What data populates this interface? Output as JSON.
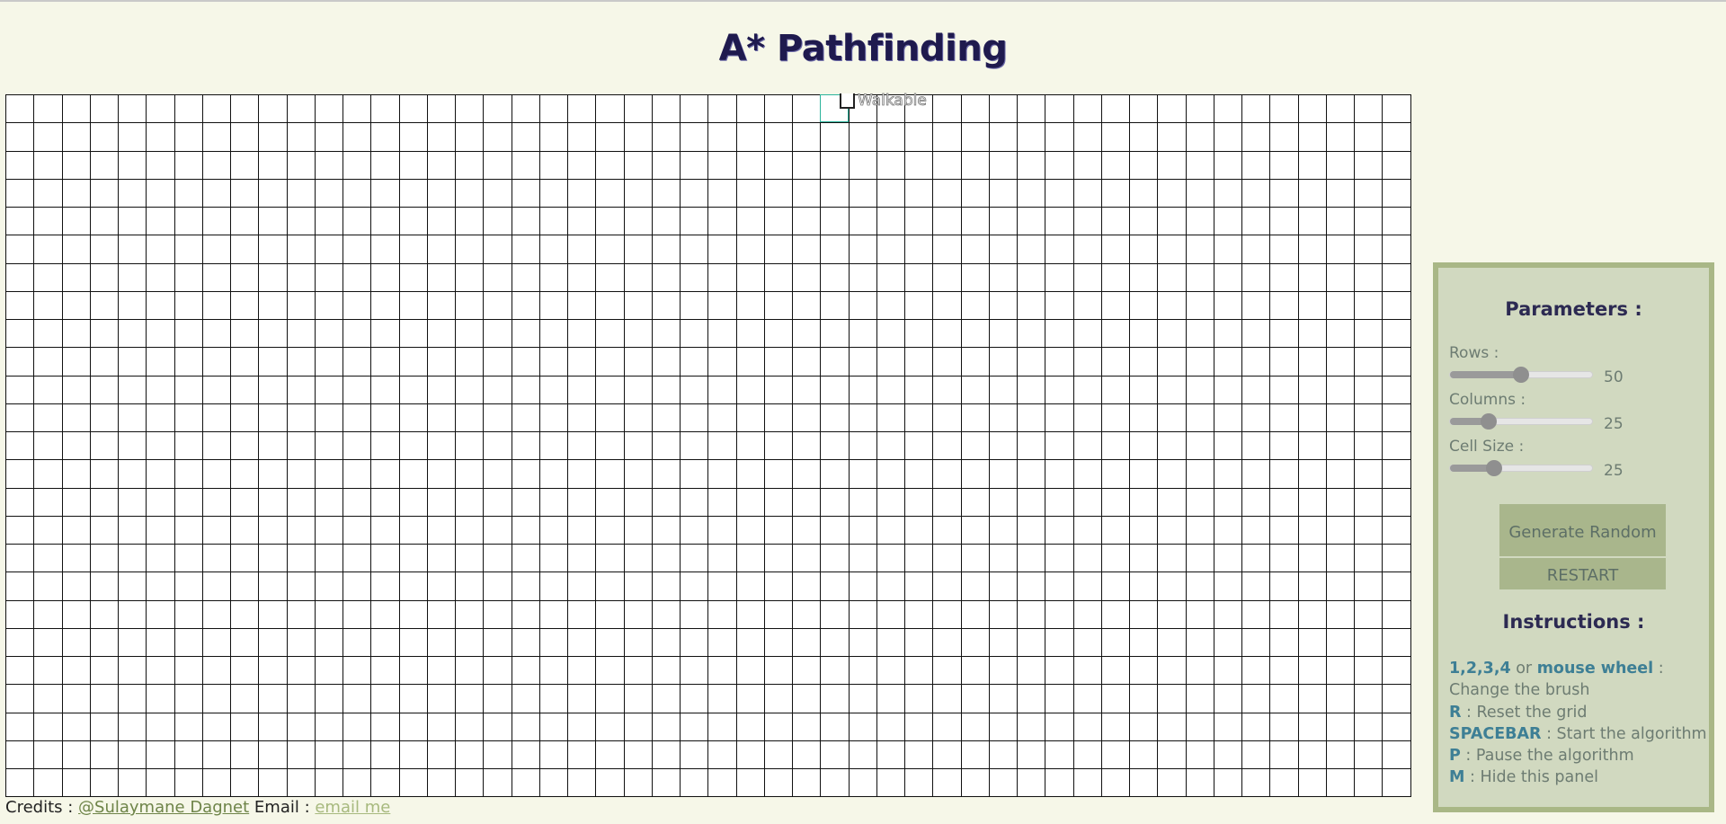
{
  "page": {
    "title": "A* Pathfinding"
  },
  "grid": {
    "columns": 50,
    "rows": 25,
    "hover_cell": {
      "row": 0,
      "col": 29
    }
  },
  "brush": {
    "label": "Walkable"
  },
  "credits": {
    "prefix": "Credits : ",
    "author_link": "@Sulaymane Dagnet",
    "email_prefix": " Email : ",
    "email_link": "email me"
  },
  "panel": {
    "params_title": "Parameters :",
    "sliders": [
      {
        "label": "Rows :",
        "value": "50",
        "fraction": 0.5
      },
      {
        "label": "Columns :",
        "value": "25",
        "fraction": 0.27
      },
      {
        "label": "Cell Size :",
        "value": "25",
        "fraction": 0.31
      }
    ],
    "generate_button": "Generate Random",
    "restart_button": "RESTART",
    "instructions_title": "Instructions :",
    "instructions": [
      {
        "keys": "1,2,3,4",
        "mid": " or ",
        "keys2": "mouse wheel",
        "text": " : Change the brush"
      },
      {
        "keys": "R",
        "text": " : Reset the grid"
      },
      {
        "keys": "SPACEBAR",
        "text": " : Start the algorithm"
      },
      {
        "keys": "P",
        "text": " : Pause the algorithm"
      },
      {
        "keys": "M",
        "text": " : Hide this panel"
      }
    ]
  }
}
